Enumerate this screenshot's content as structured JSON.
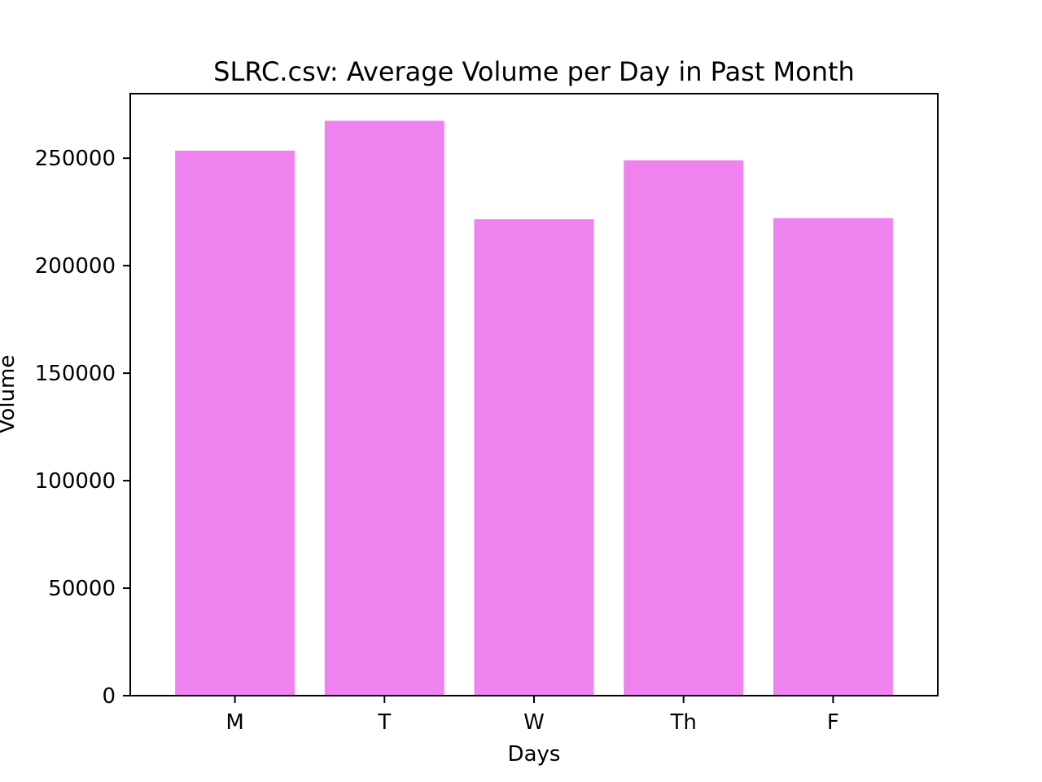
{
  "chart_data": {
    "type": "bar",
    "title": "SLRC.csv: Average Volume per Day in Past Month",
    "xlabel": "Days",
    "ylabel": "Volume",
    "categories": [
      "M",
      "T",
      "W",
      "Th",
      "F"
    ],
    "values": [
      253500,
      267400,
      221600,
      249000,
      222100
    ],
    "ylim": [
      0,
      280000
    ],
    "yticks": [
      0,
      50000,
      100000,
      150000,
      200000,
      250000
    ],
    "grid": false,
    "bar_color": "#ee82ee"
  }
}
